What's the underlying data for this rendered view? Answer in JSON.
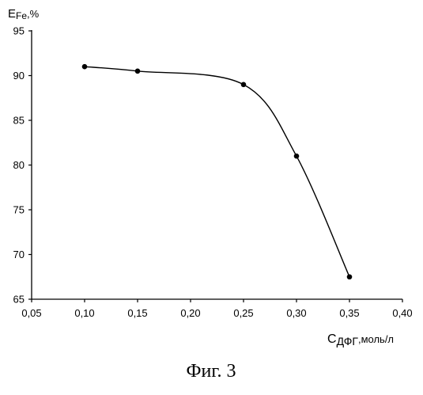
{
  "chart_data": {
    "type": "line",
    "title": "",
    "ylabel": {
      "main": "E",
      "sub": "Fe",
      "suffix": ",%"
    },
    "xlabel": {
      "main": "C",
      "sub": "ДФГ",
      "suffix": ",моль/л"
    },
    "xlim": [
      0.05,
      0.4
    ],
    "ylim": [
      65,
      95
    ],
    "x_ticks": [
      0.05,
      0.1,
      0.15,
      0.2,
      0.25,
      0.3,
      0.35,
      0.4
    ],
    "x_tick_labels": [
      "0,05",
      "0,10",
      "0,15",
      "0,20",
      "0,25",
      "0,30",
      "0,35",
      "0,40"
    ],
    "y_ticks": [
      65,
      70,
      75,
      80,
      85,
      90,
      95
    ],
    "y_tick_labels": [
      "65",
      "70",
      "75",
      "80",
      "85",
      "90",
      "95"
    ],
    "grid": false,
    "series": [
      {
        "x": [
          0.1,
          0.15,
          0.25,
          0.3,
          0.35
        ],
        "y": [
          91.0,
          90.5,
          89.0,
          81.0,
          67.5
        ],
        "smooth": true,
        "marker": "circle",
        "color": "#000000"
      }
    ]
  },
  "figure_caption": "Фиг. 3"
}
